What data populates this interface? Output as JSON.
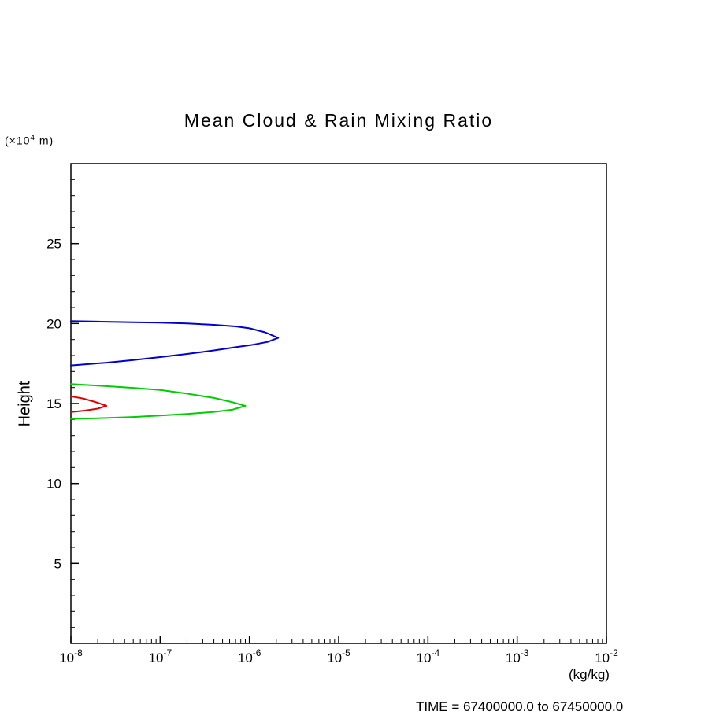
{
  "chart_data": {
    "type": "line",
    "title": "Mean Cloud & Rain Mixing Ratio",
    "xlabel": "(kg/kg)",
    "ylabel": "Height",
    "y_units_prefix": "(×10",
    "y_units_exp": "4",
    "y_units_suffix": " m)",
    "x_scale": "log",
    "xlim": [
      1e-08,
      0.01
    ],
    "ylim": [
      0,
      30
    ],
    "x_tick_exponents": [
      -8,
      -7,
      -6,
      -5,
      -4,
      -3,
      -2
    ],
    "y_ticks": [
      5,
      10,
      15,
      20,
      25
    ],
    "grid": false,
    "legend": "none",
    "footer": "TIME = 67400000.0 to 67450000.0",
    "series": [
      {
        "name": "mixing-ratio-contour-blue",
        "color": "#0000d0",
        "points": [
          [
            1e-08,
            20.15
          ],
          [
            2e-08,
            20.12
          ],
          [
            5e-08,
            20.08
          ],
          [
            1e-07,
            20.05
          ],
          [
            2e-07,
            20.0
          ],
          [
            4e-07,
            19.92
          ],
          [
            7e-07,
            19.82
          ],
          [
            1e-06,
            19.7
          ],
          [
            1.5e-06,
            19.45
          ],
          [
            2.1e-06,
            19.1
          ],
          [
            1.6e-06,
            18.85
          ],
          [
            1.1e-06,
            18.68
          ],
          [
            7e-07,
            18.52
          ],
          [
            4e-07,
            18.32
          ],
          [
            2e-07,
            18.1
          ],
          [
            1e-07,
            17.9
          ],
          [
            5e-08,
            17.72
          ],
          [
            2.5e-08,
            17.55
          ],
          [
            1e-08,
            17.38
          ]
        ]
      },
      {
        "name": "mixing-ratio-contour-green",
        "color": "#00cc00",
        "points": [
          [
            1e-08,
            16.22
          ],
          [
            2e-08,
            16.12
          ],
          [
            5e-08,
            15.98
          ],
          [
            1e-07,
            15.85
          ],
          [
            2e-07,
            15.62
          ],
          [
            4e-07,
            15.35
          ],
          [
            6.5e-07,
            15.08
          ],
          [
            9e-07,
            14.85
          ],
          [
            6.5e-07,
            14.62
          ],
          [
            4e-07,
            14.48
          ],
          [
            2e-07,
            14.35
          ],
          [
            1e-07,
            14.25
          ],
          [
            5e-08,
            14.16
          ],
          [
            2e-08,
            14.08
          ],
          [
            1e-08,
            14.04
          ]
        ]
      },
      {
        "name": "mixing-ratio-contour-red",
        "color": "#dd0000",
        "points": [
          [
            1e-08,
            15.45
          ],
          [
            1.4e-08,
            15.3
          ],
          [
            2e-08,
            15.05
          ],
          [
            2.5e-08,
            14.85
          ],
          [
            2e-08,
            14.68
          ],
          [
            1.4e-08,
            14.55
          ],
          [
            1e-08,
            14.47
          ]
        ]
      }
    ]
  }
}
